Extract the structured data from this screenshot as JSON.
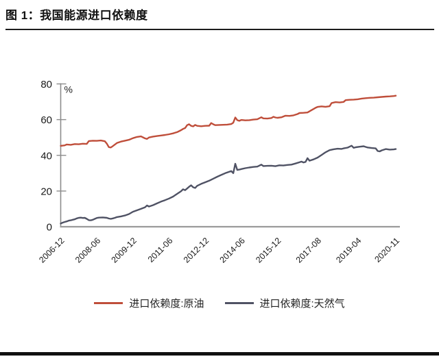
{
  "title": "图 1：我国能源进口依赖度",
  "colors": {
    "oil_line": "#bf4e3a",
    "gas_line": "#4f5264",
    "axis": "#8c8c8c",
    "baseline": "#9a9a9a",
    "tick_text": "#1a1a1a",
    "title_rule": "#1c1c1c",
    "footer_bar": "#101010"
  },
  "chart_data": {
    "type": "line",
    "title": "图 1：我国能源进口依赖度",
    "unit_label": "%",
    "ylim": [
      0,
      80
    ],
    "yticks": [
      0,
      20,
      40,
      60,
      80
    ],
    "grid": "off",
    "legend_position": "bottom",
    "x_unit": "month index from 2006-12 (0) to 2020-11 (167)",
    "total_months": 168,
    "xticks": {
      "labels": [
        "2006-12",
        "2008-06",
        "2009-12",
        "2011-06",
        "2012-12",
        "2014-06",
        "2015-12",
        "2017-08",
        "2019-04",
        "2020-11"
      ],
      "month_index": [
        0,
        18,
        36,
        54,
        72,
        90,
        108,
        128,
        148,
        167
      ]
    },
    "series": [
      {
        "name": "进口依赖度:原油",
        "color": "#bf4e3a",
        "points": [
          [
            0,
            45.3
          ],
          [
            2,
            45.6
          ],
          [
            3,
            46.1
          ],
          [
            5,
            45.9
          ],
          [
            7,
            46.3
          ],
          [
            9,
            46.2
          ],
          [
            11,
            46.5
          ],
          [
            13,
            46.4
          ],
          [
            14,
            48.0
          ],
          [
            16,
            48.2
          ],
          [
            18,
            48.1
          ],
          [
            20,
            48.3
          ],
          [
            22,
            47.9
          ],
          [
            23,
            46.5
          ],
          [
            24,
            44.6
          ],
          [
            25,
            44.4
          ],
          [
            26,
            45.2
          ],
          [
            28,
            46.9
          ],
          [
            30,
            47.7
          ],
          [
            32,
            48.2
          ],
          [
            34,
            48.7
          ],
          [
            36,
            49.6
          ],
          [
            38,
            50.3
          ],
          [
            40,
            50.6
          ],
          [
            42,
            49.5
          ],
          [
            43,
            49.2
          ],
          [
            44,
            50.0
          ],
          [
            46,
            50.5
          ],
          [
            48,
            50.8
          ],
          [
            50,
            51.1
          ],
          [
            52,
            51.4
          ],
          [
            54,
            51.8
          ],
          [
            56,
            52.3
          ],
          [
            58,
            53.0
          ],
          [
            60,
            54.1
          ],
          [
            61,
            54.8
          ],
          [
            62,
            55.3
          ],
          [
            63,
            56.9
          ],
          [
            64,
            57.4
          ],
          [
            65,
            56.5
          ],
          [
            66,
            56.2
          ],
          [
            67,
            57.0
          ],
          [
            68,
            56.5
          ],
          [
            70,
            56.3
          ],
          [
            72,
            56.5
          ],
          [
            74,
            56.6
          ],
          [
            75,
            58.1
          ],
          [
            76,
            57.4
          ],
          [
            77,
            56.9
          ],
          [
            79,
            57.0
          ],
          [
            81,
            57.1
          ],
          [
            83,
            57.2
          ],
          [
            85,
            57.5
          ],
          [
            86,
            58.3
          ],
          [
            87,
            61.2
          ],
          [
            88,
            59.7
          ],
          [
            89,
            59.3
          ],
          [
            90,
            59.8
          ],
          [
            92,
            59.6
          ],
          [
            94,
            59.7
          ],
          [
            96,
            60.0
          ],
          [
            98,
            60.2
          ],
          [
            100,
            61.3
          ],
          [
            101,
            60.7
          ],
          [
            103,
            60.6
          ],
          [
            105,
            60.9
          ],
          [
            106,
            61.6
          ],
          [
            107,
            61.2
          ],
          [
            108,
            61.0
          ],
          [
            110,
            61.3
          ],
          [
            112,
            62.2
          ],
          [
            114,
            62.1
          ],
          [
            116,
            62.4
          ],
          [
            118,
            63.1
          ],
          [
            119,
            63.7
          ],
          [
            121,
            63.8
          ],
          [
            123,
            64.0
          ],
          [
            125,
            65.3
          ],
          [
            127,
            66.6
          ],
          [
            128,
            67.1
          ],
          [
            130,
            67.4
          ],
          [
            132,
            67.2
          ],
          [
            134,
            67.5
          ],
          [
            135,
            69.3
          ],
          [
            137,
            69.8
          ],
          [
            139,
            69.6
          ],
          [
            141,
            69.9
          ],
          [
            142,
            70.9
          ],
          [
            144,
            71.1
          ],
          [
            146,
            71.2
          ],
          [
            148,
            71.4
          ],
          [
            150,
            71.8
          ],
          [
            152,
            72.0
          ],
          [
            154,
            72.2
          ],
          [
            156,
            72.3
          ],
          [
            158,
            72.5
          ],
          [
            160,
            72.7
          ],
          [
            162,
            72.9
          ],
          [
            164,
            73.0
          ],
          [
            166,
            73.2
          ],
          [
            167,
            73.4
          ]
        ]
      },
      {
        "name": "进口依赖度:天然气",
        "color": "#4f5264",
        "points": [
          [
            0,
            1.8
          ],
          [
            1,
            2.3
          ],
          [
            2,
            2.7
          ],
          [
            3,
            3.0
          ],
          [
            4,
            3.4
          ],
          [
            5,
            3.6
          ],
          [
            6,
            3.9
          ],
          [
            7,
            4.2
          ],
          [
            8,
            4.7
          ],
          [
            9,
            5.0
          ],
          [
            10,
            5.1
          ],
          [
            11,
            4.9
          ],
          [
            12,
            5.0
          ],
          [
            13,
            4.4
          ],
          [
            14,
            3.7
          ],
          [
            15,
            3.6
          ],
          [
            16,
            3.9
          ],
          [
            17,
            4.4
          ],
          [
            18,
            4.9
          ],
          [
            19,
            5.1
          ],
          [
            21,
            5.2
          ],
          [
            23,
            5.0
          ],
          [
            24,
            4.6
          ],
          [
            25,
            4.4
          ],
          [
            26,
            4.7
          ],
          [
            27,
            5.0
          ],
          [
            28,
            5.4
          ],
          [
            30,
            5.8
          ],
          [
            32,
            6.3
          ],
          [
            34,
            7.1
          ],
          [
            36,
            8.4
          ],
          [
            38,
            9.2
          ],
          [
            40,
            10.0
          ],
          [
            42,
            10.9
          ],
          [
            43,
            11.9
          ],
          [
            44,
            11.3
          ],
          [
            46,
            12.1
          ],
          [
            48,
            13.1
          ],
          [
            50,
            14.1
          ],
          [
            52,
            14.9
          ],
          [
            54,
            15.8
          ],
          [
            56,
            16.9
          ],
          [
            58,
            18.4
          ],
          [
            60,
            19.9
          ],
          [
            61,
            21.0
          ],
          [
            62,
            20.5
          ],
          [
            63,
            21.4
          ],
          [
            64,
            22.4
          ],
          [
            65,
            23.2
          ],
          [
            66,
            22.1
          ],
          [
            67,
            21.7
          ],
          [
            68,
            22.9
          ],
          [
            70,
            24.0
          ],
          [
            72,
            24.9
          ],
          [
            74,
            25.8
          ],
          [
            76,
            26.9
          ],
          [
            78,
            28.0
          ],
          [
            80,
            29.0
          ],
          [
            82,
            30.0
          ],
          [
            84,
            30.8
          ],
          [
            85,
            31.2
          ],
          [
            86,
            30.0
          ],
          [
            87,
            35.3
          ],
          [
            88,
            31.8
          ],
          [
            89,
            32.0
          ],
          [
            90,
            32.3
          ],
          [
            92,
            32.8
          ],
          [
            94,
            33.2
          ],
          [
            96,
            33.5
          ],
          [
            98,
            33.7
          ],
          [
            100,
            34.8
          ],
          [
            101,
            34.0
          ],
          [
            103,
            34.1
          ],
          [
            105,
            34.2
          ],
          [
            107,
            33.9
          ],
          [
            109,
            34.4
          ],
          [
            111,
            34.3
          ],
          [
            113,
            34.6
          ],
          [
            115,
            34.8
          ],
          [
            117,
            35.4
          ],
          [
            119,
            36.1
          ],
          [
            120,
            36.5
          ],
          [
            121,
            36.0
          ],
          [
            122,
            36.3
          ],
          [
            123,
            38.4
          ],
          [
            124,
            37.0
          ],
          [
            126,
            37.7
          ],
          [
            128,
            38.7
          ],
          [
            130,
            40.2
          ],
          [
            132,
            41.7
          ],
          [
            134,
            42.9
          ],
          [
            136,
            43.4
          ],
          [
            138,
            43.7
          ],
          [
            140,
            43.6
          ],
          [
            141,
            43.9
          ],
          [
            143,
            44.3
          ],
          [
            145,
            45.4
          ],
          [
            146,
            44.2
          ],
          [
            147,
            44.5
          ],
          [
            149,
            44.8
          ],
          [
            151,
            45.1
          ],
          [
            152,
            44.7
          ],
          [
            153,
            44.4
          ],
          [
            155,
            44.1
          ],
          [
            157,
            43.9
          ],
          [
            158,
            42.4
          ],
          [
            159,
            42.2
          ],
          [
            160,
            42.8
          ],
          [
            162,
            43.5
          ],
          [
            164,
            43.2
          ],
          [
            166,
            43.3
          ],
          [
            167,
            43.5
          ]
        ]
      }
    ]
  }
}
